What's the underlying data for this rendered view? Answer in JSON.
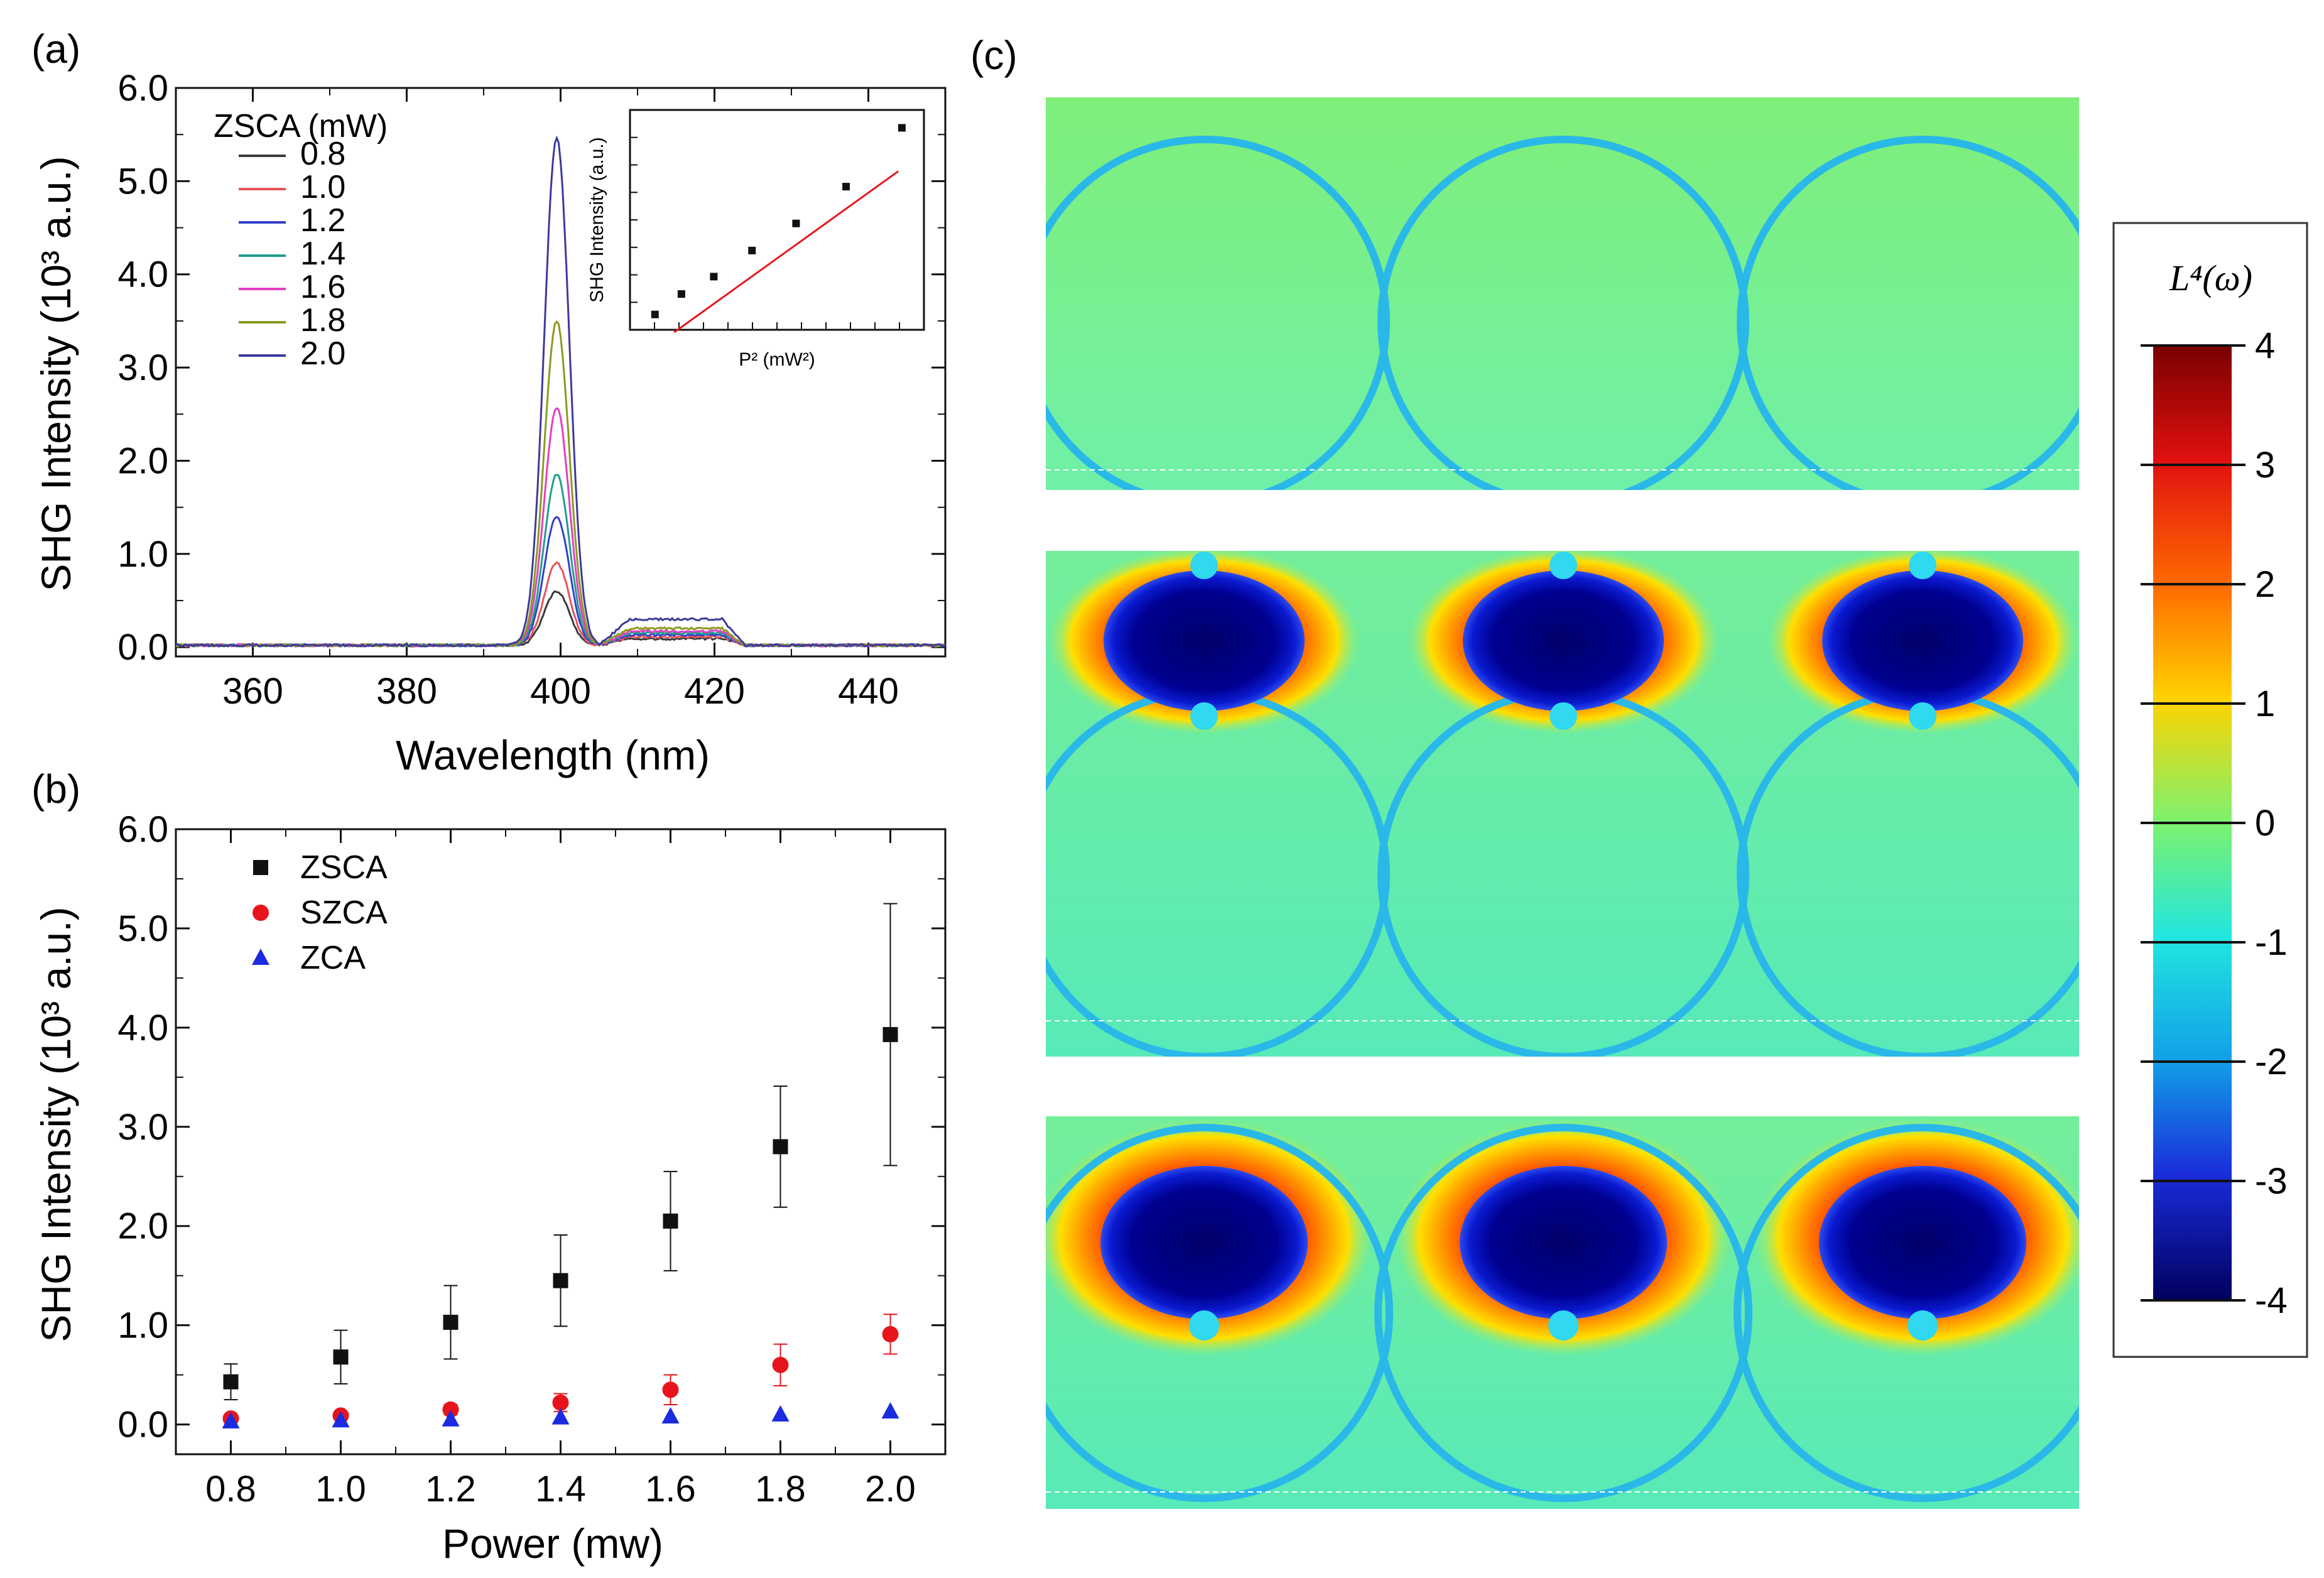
{
  "colors": {
    "ZSCA": "#111111",
    "SZCA": "#e8141c",
    "ZCA": "#1a2be0",
    "fit_line": "#e8141c",
    "spec_0.8": "#3a3a3a",
    "spec_1.0": "#e8535a",
    "spec_1.2": "#3340c8",
    "spec_1.4": "#1f9e8e",
    "spec_1.6": "#e23fc0",
    "spec_1.8": "#8c9a20",
    "spec_2.0": "#3b3a9c"
  },
  "chart_data": [
    {
      "panel": "(a)",
      "type": "line",
      "xlabel": "Wavelength (nm)",
      "ylabel": "SHG Intensity (10³ a.u.)",
      "xlim": [
        350,
        450
      ],
      "ylim": [
        0.0,
        6.0
      ],
      "xticks": [
        "360",
        "380",
        "400",
        "420",
        "440"
      ],
      "yticks": [
        "0.0",
        "1.0",
        "2.0",
        "3.0",
        "4.0",
        "5.0",
        "6.0"
      ],
      "legend_title": "ZSCA (mW)",
      "legend_position": "top-left",
      "peak_center_nm": 399.5,
      "series": [
        {
          "name": "0.8",
          "peak": 0.58,
          "shoulder": 0.07
        },
        {
          "name": "1.0",
          "peak": 0.88,
          "shoulder": 0.09
        },
        {
          "name": "1.2",
          "peak": 1.38,
          "shoulder": 0.11
        },
        {
          "name": "1.4",
          "peak": 1.84,
          "shoulder": 0.13
        },
        {
          "name": "1.6",
          "peak": 2.55,
          "shoulder": 0.15
        },
        {
          "name": "1.8",
          "peak": 3.48,
          "shoulder": 0.18
        },
        {
          "name": "2.0",
          "peak": 5.45,
          "shoulder": 0.28
        }
      ],
      "inset": {
        "type": "scatter",
        "xlabel": "P² (mW²)",
        "ylabel": "SHG Intensity (a.u.)",
        "points": [
          [
            0.64,
            0.3
          ],
          [
            1.0,
            0.7
          ],
          [
            1.44,
            1.04
          ],
          [
            1.96,
            1.55
          ],
          [
            2.56,
            2.08
          ],
          [
            3.24,
            2.8
          ],
          [
            4.0,
            3.95
          ]
        ],
        "xlim": [
          0.3,
          4.3
        ],
        "ylim": [
          0.0,
          4.3
        ],
        "fit": [
          [
            0.9,
            -0.05
          ],
          [
            3.95,
            3.1
          ]
        ]
      }
    },
    {
      "panel": "(b)",
      "type": "scatter",
      "xlabel": "Power (mw)",
      "ylabel": "SHG Intensity (10³ a.u.)",
      "xlim": [
        0.7,
        2.1
      ],
      "ylim": [
        -0.3,
        6.0
      ],
      "xticks": [
        "0.8",
        "1.0",
        "1.2",
        "1.4",
        "1.6",
        "1.8",
        "2.0"
      ],
      "yticks": [
        "0.0",
        "1.0",
        "2.0",
        "3.0",
        "4.0",
        "5.0",
        "6.0"
      ],
      "legend_position": "top-left",
      "x": [
        0.8,
        1.0,
        1.2,
        1.4,
        1.6,
        1.8,
        2.0
      ],
      "series": [
        {
          "name": "ZSCA",
          "marker": "square",
          "values": [
            0.43,
            0.68,
            1.03,
            1.45,
            2.05,
            2.8,
            3.93
          ],
          "errors": [
            0.18,
            0.27,
            0.37,
            0.46,
            0.5,
            0.61,
            1.32
          ]
        },
        {
          "name": "SZCA",
          "marker": "circle",
          "values": [
            0.06,
            0.09,
            0.15,
            0.22,
            0.35,
            0.6,
            0.91
          ],
          "errors": [
            0.03,
            0.04,
            0.05,
            0.09,
            0.15,
            0.21,
            0.2
          ]
        },
        {
          "name": "ZCA",
          "marker": "triangle",
          "values": [
            0.03,
            0.04,
            0.05,
            0.07,
            0.08,
            0.1,
            0.13
          ],
          "errors": [
            0,
            0,
            0,
            0,
            0,
            0,
            0
          ]
        }
      ]
    },
    {
      "panel": "(c)",
      "type": "heatmap",
      "colorbar_title": "L⁴(ω)",
      "colorbar_range": [
        -4,
        4
      ],
      "colorbar_ticks": [
        "4",
        "3",
        "2",
        "1",
        "0",
        "-1",
        "-2",
        "-3",
        "-4"
      ],
      "maps": [
        {
          "name": "top",
          "hot_spots": false
        },
        {
          "name": "middle",
          "hot_spots": true
        },
        {
          "name": "bottom",
          "hot_spots": true
        }
      ]
    }
  ]
}
